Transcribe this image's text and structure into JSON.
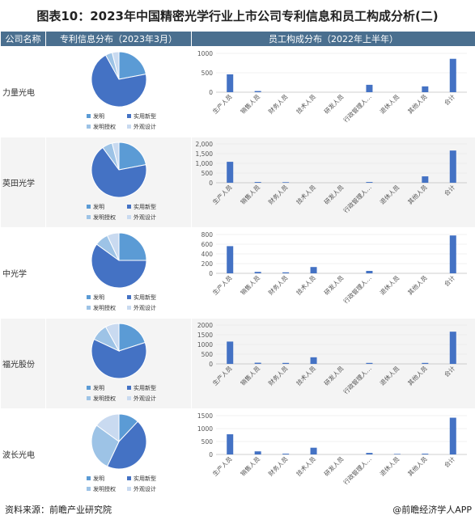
{
  "title": "图表10：2023年中国精密光学行业上市公司专利信息和员工构成分析(二)",
  "headers": {
    "company": "公司名称",
    "patent": "专利信息分布（2023年3月）",
    "staff": "员工构成分布（2022年上半年）"
  },
  "pie_legend": [
    "发明",
    "实用新型",
    "发明授权",
    "外观设计"
  ],
  "colors": {
    "bar": "#4472c4",
    "pie": [
      "#5b9bd5",
      "#4472c4",
      "#9dc3e6",
      "#c9daf0"
    ],
    "header_bg": "#4a6f8f"
  },
  "chart_data": [
    {
      "type": "pie",
      "company": "力量光电",
      "categories": [
        "发明",
        "实用新型",
        "发明授权",
        "外观设计"
      ],
      "values": [
        22,
        70,
        4,
        4
      ]
    },
    {
      "type": "bar",
      "company": "力量光电",
      "categories": [
        "生产人员",
        "销售人员",
        "财务人员",
        "技术人员",
        "研发人员",
        "行政管理人…",
        "退休人员",
        "其他人员",
        "合计"
      ],
      "values": [
        460,
        30,
        0,
        0,
        0,
        190,
        0,
        150,
        860
      ],
      "yticks": [
        0,
        500,
        1000
      ],
      "ylim": [
        0,
        1000
      ]
    },
    {
      "type": "pie",
      "company": "英田光学",
      "categories": [
        "发明",
        "实用新型",
        "发明授权",
        "外观设计"
      ],
      "values": [
        22,
        68,
        6,
        4
      ]
    },
    {
      "type": "bar",
      "company": "英田光学",
      "categories": [
        "生产人员",
        "销售人员",
        "财务人员",
        "技术人员",
        "研发人员",
        "行政管理人…",
        "退休人员",
        "其他人员",
        "合计"
      ],
      "values": [
        1080,
        40,
        30,
        0,
        0,
        40,
        0,
        330,
        1660
      ],
      "yticks": [
        0,
        500,
        1000,
        1500,
        2000
      ],
      "ytick_labels": [
        "0",
        "500",
        "1,000",
        "1,500",
        "2,000"
      ],
      "ylim": [
        0,
        2000
      ]
    },
    {
      "type": "pie",
      "company": "中光学",
      "categories": [
        "发明",
        "实用新型",
        "发明授权",
        "外观设计"
      ],
      "values": [
        25,
        60,
        8,
        7
      ]
    },
    {
      "type": "bar",
      "company": "中光学",
      "categories": [
        "生产人员",
        "销售人员",
        "财务人员",
        "技术人员",
        "研发人员",
        "行政管理人…",
        "退休人员",
        "其他人员",
        "合计"
      ],
      "values": [
        560,
        30,
        20,
        130,
        0,
        50,
        0,
        0,
        780
      ],
      "yticks": [
        0,
        200,
        400,
        600,
        800
      ],
      "ylim": [
        0,
        800
      ]
    },
    {
      "type": "pie",
      "company": "福光股份",
      "categories": [
        "发明",
        "实用新型",
        "发明授权",
        "外观设计"
      ],
      "values": [
        20,
        62,
        10,
        8
      ]
    },
    {
      "type": "bar",
      "company": "福光股份",
      "categories": [
        "生产人员",
        "销售人员",
        "财务人员",
        "技术人员",
        "研发人员",
        "行政管理人…",
        "退休人员",
        "其他人员",
        "合计"
      ],
      "values": [
        1150,
        60,
        50,
        340,
        0,
        50,
        0,
        50,
        1660
      ],
      "yticks": [
        0,
        500,
        1000,
        1500,
        2000
      ],
      "ylim": [
        0,
        2000
      ]
    },
    {
      "type": "pie",
      "company": "波长光电",
      "categories": [
        "发明",
        "实用新型",
        "发明授权",
        "外观设计"
      ],
      "values": [
        12,
        45,
        28,
        15
      ]
    },
    {
      "type": "bar",
      "company": "波长光电",
      "categories": [
        "生产人员",
        "销售人员",
        "财务人员",
        "技术人员",
        "研发人员",
        "行政管理人…",
        "退休人员",
        "其他人员",
        "合计"
      ],
      "values": [
        780,
        120,
        30,
        260,
        0,
        60,
        20,
        30,
        1420
      ],
      "yticks": [
        0,
        500,
        1000,
        1500
      ],
      "ylim": [
        0,
        1500
      ]
    }
  ],
  "footer": {
    "source": "资料来源：前瞻产业研究院",
    "brand": "@前瞻经济学人APP"
  }
}
